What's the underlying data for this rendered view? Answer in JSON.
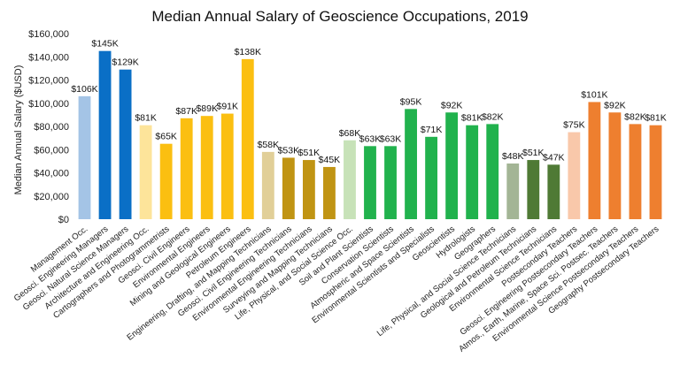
{
  "chart_data": {
    "type": "bar",
    "title": "Median Annual Salary of Geoscience Occupations, 2019",
    "ylabel": "Median Annual Salary ($USD)",
    "xlabel": "",
    "ylim": [
      0,
      160000
    ],
    "yticks": [
      0,
      20000,
      40000,
      60000,
      80000,
      100000,
      120000,
      140000,
      160000
    ],
    "ytick_labels": [
      "$0",
      "$20,000",
      "$40,000",
      "$60,000",
      "$80,000",
      "$100,000",
      "$120,000",
      "$140,000",
      "$160,000"
    ],
    "grid": false,
    "legend": "none",
    "categories": [
      "Management Occ.",
      "Geosci. Engineering Managers",
      "Geosci. Natural Science Managers",
      "Architecture and Engineering Occ.",
      "Cartographers and Photogrammetrists",
      "Geosci. Civil Engineers",
      "Environmental Engineers",
      "Mining and Geological Engineers",
      "Petroleum Engineers",
      "Engineering, Drafting, and Mapping Technicians",
      "Geosci. Civil Engineering Technicians",
      "Environmental Engineering Technicians",
      "Surveying and Mapping Technicians",
      "Life, Physical, and Social Science Occ.",
      "Soil and Plant Scientists",
      "Conservation Scientists",
      "Atmospheric and Space Scientists",
      "Environmental Scientists and Specialists",
      "Geoscientists",
      "Hydrologists",
      "Geographers",
      "Life, Physical, and Social Science Technicians",
      "Geological and Petroleum Technicians",
      "Environmental Science Technicians",
      "Postsecondary Teachers",
      "Geosci. Engineering Postsecondary Teachers",
      "Atmos., Earth, Marine, Space Sci. Postsec. Teachers",
      "Environmental Science Postsecondary Teachers",
      "Geography Postsecondary Teachers"
    ],
    "values": [
      106000,
      145000,
      129000,
      81000,
      65000,
      87000,
      89000,
      91000,
      138000,
      58000,
      53000,
      51000,
      45000,
      68000,
      63000,
      63000,
      95000,
      71000,
      92000,
      81000,
      82000,
      48000,
      51000,
      47000,
      75000,
      101000,
      92000,
      82000,
      81000
    ],
    "data_labels": [
      "$106K",
      "$145K",
      "$129K",
      "$81K",
      "$65K",
      "$87K",
      "$89K",
      "$91K",
      "$138K",
      "$58K",
      "$53K",
      "$51K",
      "$45K",
      "$68K",
      "$63K",
      "$63K",
      "$95K",
      "$71K",
      "$92K",
      "$81K",
      "$82K",
      "$48K",
      "$51K",
      "$47K",
      "$75K",
      "$101K",
      "$92K",
      "$82K",
      "$81K"
    ],
    "colors": [
      "#a4c4e6",
      "#0a6fc6",
      "#0a6fc6",
      "#fde49a",
      "#fbbf11",
      "#fbbf11",
      "#fbbf11",
      "#fbbf11",
      "#fbbf11",
      "#e1cf98",
      "#c09413",
      "#c09413",
      "#c09413",
      "#c7e2b8",
      "#21b24d",
      "#21b24d",
      "#21b24d",
      "#21b24d",
      "#21b24d",
      "#21b24d",
      "#21b24d",
      "#a3b595",
      "#4f7a35",
      "#4f7a35",
      "#f9c8aa",
      "#ee7f2f",
      "#ee7f2f",
      "#ee7f2f",
      "#ee7f2f"
    ]
  }
}
